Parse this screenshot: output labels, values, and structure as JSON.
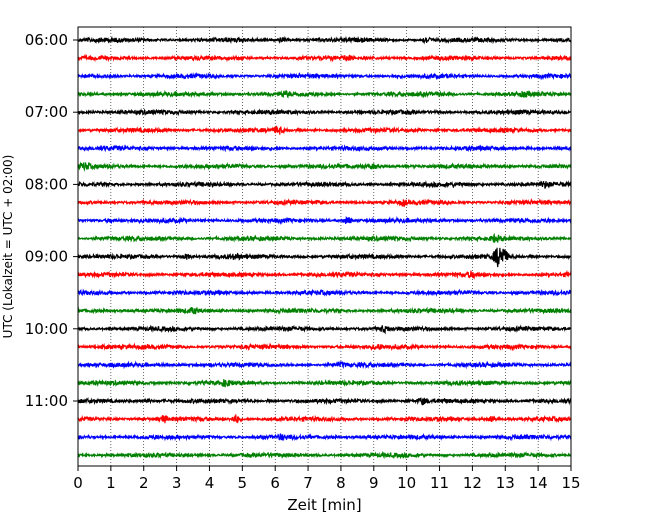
{
  "chart_data": {
    "type": "line",
    "subtype": "helicorder",
    "xlabel": "Zeit  [min]",
    "ylabel": "UTC (Lokalzeit = UTC + 02:00)",
    "xlim": [
      0,
      15
    ],
    "x_ticks": [
      0,
      1,
      2,
      3,
      4,
      5,
      6,
      7,
      8,
      9,
      10,
      11,
      12,
      13,
      14,
      15
    ],
    "x_tick_labels": [
      "0",
      "1",
      "2",
      "3",
      "4",
      "5",
      "6",
      "7",
      "8",
      "9",
      "10",
      "11",
      "12",
      "13",
      "14",
      "15"
    ],
    "y_tick_labels": [
      "06:00",
      "07:00",
      "08:00",
      "09:00",
      "10:00",
      "11:00"
    ],
    "y_tick_rows": [
      0,
      4,
      8,
      12,
      16,
      20
    ],
    "grid": "vertical dotted",
    "trace_minutes": 15,
    "trace_colors": [
      "#000000",
      "#ff0000",
      "#0000ff",
      "#008000"
    ],
    "traces": [
      {
        "start": "06:00",
        "events": [
          {
            "t": 6.2,
            "amp": 0.3
          },
          {
            "t": 10.6,
            "amp": 0.5
          }
        ]
      },
      {
        "start": "06:15",
        "events": [
          {
            "t": 8.2,
            "amp": 0.3
          }
        ]
      },
      {
        "start": "06:30",
        "events": [
          {
            "t": 1.0,
            "amp": 0.2
          }
        ]
      },
      {
        "start": "06:45",
        "events": [
          {
            "t": 6.3,
            "amp": 0.3
          },
          {
            "t": 13.6,
            "amp": 0.3
          }
        ]
      },
      {
        "start": "07:00",
        "events": []
      },
      {
        "start": "07:15",
        "events": [
          {
            "t": 6.1,
            "amp": 0.6
          }
        ]
      },
      {
        "start": "07:30",
        "events": []
      },
      {
        "start": "07:45",
        "events": [
          {
            "t": 0.2,
            "amp": 0.4
          },
          {
            "t": 9.0,
            "amp": 0.3
          }
        ]
      },
      {
        "start": "08:00",
        "events": [
          {
            "t": 14.2,
            "amp": 0.4
          }
        ]
      },
      {
        "start": "08:15",
        "events": [
          {
            "t": 9.9,
            "amp": 0.3
          }
        ]
      },
      {
        "start": "08:30",
        "events": [
          {
            "t": 8.2,
            "amp": 0.6
          },
          {
            "t": 1.0,
            "amp": 0.3
          }
        ]
      },
      {
        "start": "08:45",
        "events": [
          {
            "t": 12.7,
            "amp": 0.5
          }
        ]
      },
      {
        "start": "09:00",
        "events": [
          {
            "t": 3.3,
            "amp": 0.4
          },
          {
            "t": 4.8,
            "amp": 0.3
          },
          {
            "t": 12.85,
            "amp": 1.9
          }
        ]
      },
      {
        "start": "09:15",
        "events": [
          {
            "t": 12.0,
            "amp": 0.4
          },
          {
            "t": 15.0,
            "amp": 0.4
          }
        ]
      },
      {
        "start": "09:30",
        "events": []
      },
      {
        "start": "09:45",
        "events": [
          {
            "t": 3.5,
            "amp": 0.3
          }
        ]
      },
      {
        "start": "10:00",
        "events": [
          {
            "t": 9.3,
            "amp": 0.4
          }
        ]
      },
      {
        "start": "10:15",
        "events": [
          {
            "t": 9.1,
            "amp": 0.3
          },
          {
            "t": 0.8,
            "amp": 0.3
          }
        ]
      },
      {
        "start": "10:30",
        "events": [
          {
            "t": 8.0,
            "amp": 0.3
          }
        ]
      },
      {
        "start": "10:45",
        "events": [
          {
            "t": 4.5,
            "amp": 0.4
          }
        ]
      },
      {
        "start": "11:00",
        "events": [
          {
            "t": 10.5,
            "amp": 0.4
          },
          {
            "t": 2.1,
            "amp": 0.3
          }
        ]
      },
      {
        "start": "11:15",
        "events": [
          {
            "t": 2.6,
            "amp": 0.5
          },
          {
            "t": 4.8,
            "amp": 0.7
          },
          {
            "t": 12.6,
            "amp": 0.4
          }
        ]
      },
      {
        "start": "11:30",
        "events": [
          {
            "t": 6.2,
            "amp": 0.3
          }
        ]
      },
      {
        "start": "11:45",
        "events": []
      }
    ]
  }
}
